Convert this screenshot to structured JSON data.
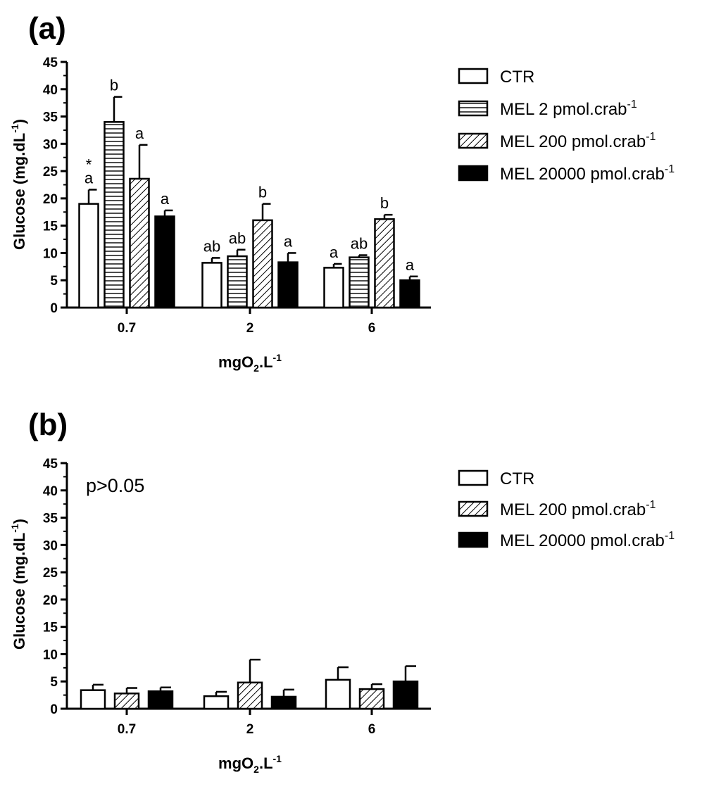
{
  "chart_data": [
    {
      "type": "bar",
      "panel_label": "(a)",
      "xlabel": "mgO2.L-1",
      "ylabel": "Glucose (mg.dL-1)",
      "ylim": [
        0,
        45
      ],
      "yticks": [
        0,
        5,
        10,
        15,
        20,
        25,
        30,
        35,
        40,
        45
      ],
      "categories": [
        "0.7",
        "2",
        "6"
      ],
      "note": "",
      "series": [
        {
          "name": "CTR",
          "pattern": "white",
          "values": [
            19.0,
            8.2,
            7.3
          ],
          "errors": [
            2.6,
            0.9,
            0.7
          ],
          "labels": [
            "a",
            "ab",
            "a"
          ],
          "marks": [
            "*",
            "",
            ""
          ]
        },
        {
          "name": "MEL 2 pmol.crab-1",
          "pattern": "horizontal",
          "values": [
            34.0,
            9.4,
            9.2
          ],
          "errors": [
            4.6,
            1.2,
            0.4
          ],
          "labels": [
            "b",
            "ab",
            "ab"
          ],
          "marks": [
            "",
            "",
            ""
          ]
        },
        {
          "name": "MEL 200 pmol.crab-1",
          "pattern": "diagonal",
          "values": [
            23.6,
            16.0,
            16.2
          ],
          "errors": [
            6.2,
            3.0,
            0.8
          ],
          "labels": [
            "a",
            "b",
            "b"
          ],
          "marks": [
            "",
            "",
            ""
          ]
        },
        {
          "name": "MEL 20000 pmol.crab-1",
          "pattern": "black",
          "values": [
            16.7,
            8.3,
            5.0
          ],
          "errors": [
            1.1,
            1.7,
            0.7
          ],
          "labels": [
            "a",
            "a",
            "a"
          ],
          "marks": [
            "",
            "",
            ""
          ]
        }
      ]
    },
    {
      "type": "bar",
      "panel_label": "(b)",
      "xlabel": "mgO2.L-1",
      "ylabel": "Glucose (mg.dL-1)",
      "ylim": [
        0,
        45
      ],
      "yticks": [
        0,
        5,
        10,
        15,
        20,
        25,
        30,
        35,
        40,
        45
      ],
      "categories": [
        "0.7",
        "2",
        "6"
      ],
      "note": "p>0.05",
      "series": [
        {
          "name": "CTR",
          "pattern": "white",
          "values": [
            3.4,
            2.3,
            5.3
          ],
          "errors": [
            1.0,
            0.8,
            2.3
          ]
        },
        {
          "name": "MEL 200 pmol.crab-1",
          "pattern": "diagonal",
          "values": [
            2.8,
            4.8,
            3.6
          ],
          "errors": [
            1.0,
            4.2,
            0.9
          ]
        },
        {
          "name": "MEL 20000 pmol.crab-1",
          "pattern": "black",
          "values": [
            3.2,
            2.2,
            5.0
          ],
          "errors": [
            0.7,
            1.3,
            2.8
          ]
        }
      ]
    }
  ]
}
